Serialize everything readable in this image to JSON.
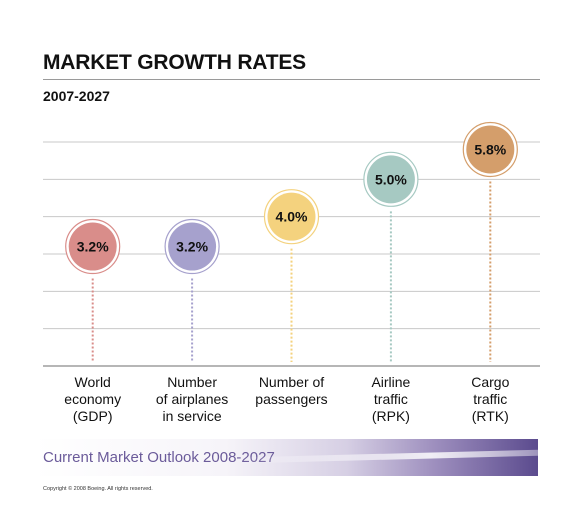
{
  "header": {
    "title": "MARKET GROWTH RATES",
    "subtitle": "2007-2027"
  },
  "chart_data": {
    "type": "lollipop",
    "title": "MARKET GROWTH RATES",
    "subtitle": "2007-2027",
    "categories": [
      [
        "World",
        "economy",
        "(GDP)"
      ],
      [
        "Number",
        "of airplanes",
        "in service"
      ],
      [
        "Number of",
        "passengers"
      ],
      [
        "Airline",
        "traffic",
        "(RPK)"
      ],
      [
        "Cargo",
        "traffic",
        "(RTK)"
      ]
    ],
    "values": [
      3.2,
      3.2,
      4.0,
      5.0,
      5.8
    ],
    "labels": [
      "3.2%",
      "3.2%",
      "4.0%",
      "5.0%",
      "5.8%"
    ],
    "colors": [
      "#d98d8a",
      "#a6a1cd",
      "#f4d27e",
      "#a6c9c2",
      "#d49e6b"
    ],
    "ylim": [
      0,
      6
    ],
    "grid": true
  },
  "footer": {
    "text": "Current Market Outlook 2008-2027",
    "copyright": "Copyright © 2008 Boeing. All rights reserved."
  }
}
